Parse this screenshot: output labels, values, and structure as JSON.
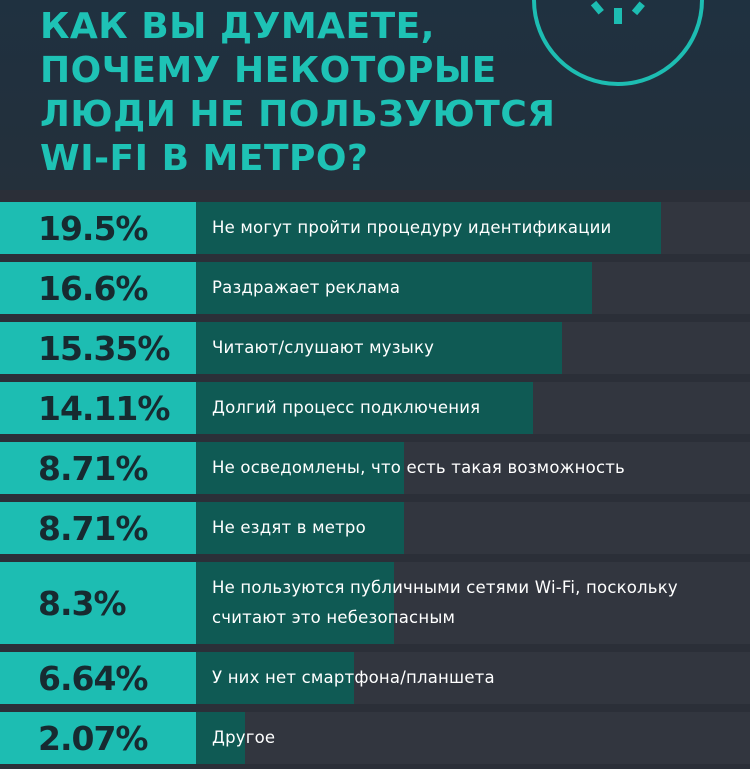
{
  "header": {
    "title_lines": [
      "КАК ВЫ ДУМАЕТЕ,",
      "ПОЧЕМУ НЕКОТОРЫЕ",
      "ЛЮДИ НЕ ПОЛЬЗУЮТСЯ",
      "WI-FI В МЕТРО?"
    ]
  },
  "colors": {
    "accent": "#1dbdb2",
    "bar": "#0f5a54",
    "track": "#32363f",
    "background": "#2b2f38"
  },
  "chart_data": {
    "type": "bar",
    "orientation": "horizontal",
    "value_unit": "%",
    "xlim": [
      0,
      25
    ],
    "categories": [
      "Не могут пройти процедуру идентификации",
      "Раздражает реклама",
      "Читают/слушают музыку",
      "Долгий процесс подключения",
      "Не осведомлены, что есть такая возможность",
      "Не ездят в метро",
      "Не пользуются публичными сетями Wi-Fi, поскольку считают это небезопасным",
      "У них нет смартфона/планшета",
      "Другое"
    ],
    "values": [
      19.5,
      16.6,
      15.35,
      14.11,
      8.71,
      8.71,
      8.3,
      6.64,
      2.07
    ],
    "value_labels": [
      "19.5%",
      "16.6%",
      "15.35%",
      "14.11%",
      "8.71%",
      "8.71%",
      "8.3%",
      "6.64%",
      "2.07%"
    ],
    "label_lines": [
      [
        "Не могут пройти процедуру идентификации"
      ],
      [
        "Раздражает реклама"
      ],
      [
        "Читают/слушают музыку"
      ],
      [
        "Долгий процесс подключения"
      ],
      [
        "Не осведомлены, что есть такая возможность"
      ],
      [
        "Не ездят в метро"
      ],
      [
        "Не пользуются публичными сетями Wi-Fi, поскольку",
        "считают это небезопасным"
      ],
      [
        "У них нет смартфона/планшета"
      ],
      [
        "Другое"
      ]
    ]
  }
}
